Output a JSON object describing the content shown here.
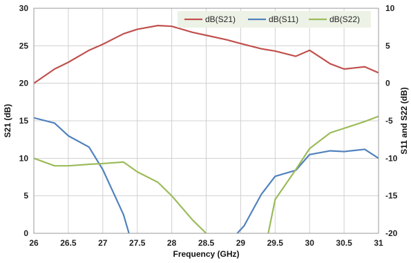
{
  "chart_data": {
    "type": "line",
    "xlabel": "Frequency (GHz)",
    "ylabel": "S21 (dB)",
    "y2label": "S11 and S22 (dB)",
    "xlim": [
      26,
      31
    ],
    "ylim": [
      0,
      30
    ],
    "y2lim": [
      -20,
      10
    ],
    "x_ticks": [
      "26",
      "26.5",
      "27",
      "27.5",
      "28",
      "28.5",
      "29",
      "29.5",
      "30",
      "30.5",
      "31"
    ],
    "y_ticks": [
      "0",
      "5",
      "10",
      "15",
      "20",
      "25",
      "30"
    ],
    "y2_ticks": [
      "-20",
      "-15",
      "-10",
      "-5",
      "0",
      "5",
      "10"
    ],
    "grid": true,
    "legend_position": "top-right",
    "series": [
      {
        "name": "dB(S21)",
        "axis": "left",
        "color": "#C0504D",
        "x": [
          26.0,
          26.3,
          26.5,
          26.8,
          27.0,
          27.3,
          27.5,
          27.8,
          28.0,
          28.3,
          28.5,
          28.8,
          29.0,
          29.3,
          29.5,
          29.8,
          30.0,
          30.3,
          30.5,
          30.8,
          31.0
        ],
        "y": [
          20.0,
          21.9,
          22.8,
          24.4,
          25.2,
          26.6,
          27.2,
          27.7,
          27.6,
          26.8,
          26.4,
          25.8,
          25.3,
          24.6,
          24.3,
          23.6,
          24.4,
          22.6,
          21.9,
          22.2,
          21.4
        ]
      },
      {
        "name": "dB(S11)",
        "axis": "right",
        "color": "#4F81BD",
        "x": [
          26.0,
          26.3,
          26.5,
          26.8,
          27.0,
          27.3,
          27.38,
          null,
          28.95,
          29.05,
          29.3,
          29.5,
          29.8,
          30.0,
          30.3,
          30.5,
          30.8,
          31.0
        ],
        "y": [
          -4.6,
          -5.3,
          -7.0,
          -8.5,
          -11.5,
          -17.5,
          -20.0,
          null,
          -20.0,
          -19.0,
          -14.8,
          -12.4,
          -11.6,
          -9.5,
          -9.0,
          -9.1,
          -8.8,
          -10.0
        ]
      },
      {
        "name": "dB(S22)",
        "axis": "right",
        "color": "#9BBB59",
        "x": [
          26.0,
          26.3,
          26.5,
          26.8,
          27.0,
          27.3,
          27.5,
          27.8,
          28.0,
          28.3,
          28.5,
          null,
          29.4,
          29.5,
          29.8,
          30.0,
          30.3,
          30.5,
          30.8,
          31.0
        ],
        "y": [
          -10.0,
          -11.0,
          -11.0,
          -10.8,
          -10.7,
          -10.5,
          -11.8,
          -13.2,
          -15.0,
          -18.2,
          -20.0,
          null,
          -20.0,
          -15.5,
          -11.5,
          -8.7,
          -6.6,
          -6.0,
          -5.1,
          -4.4
        ]
      }
    ]
  }
}
